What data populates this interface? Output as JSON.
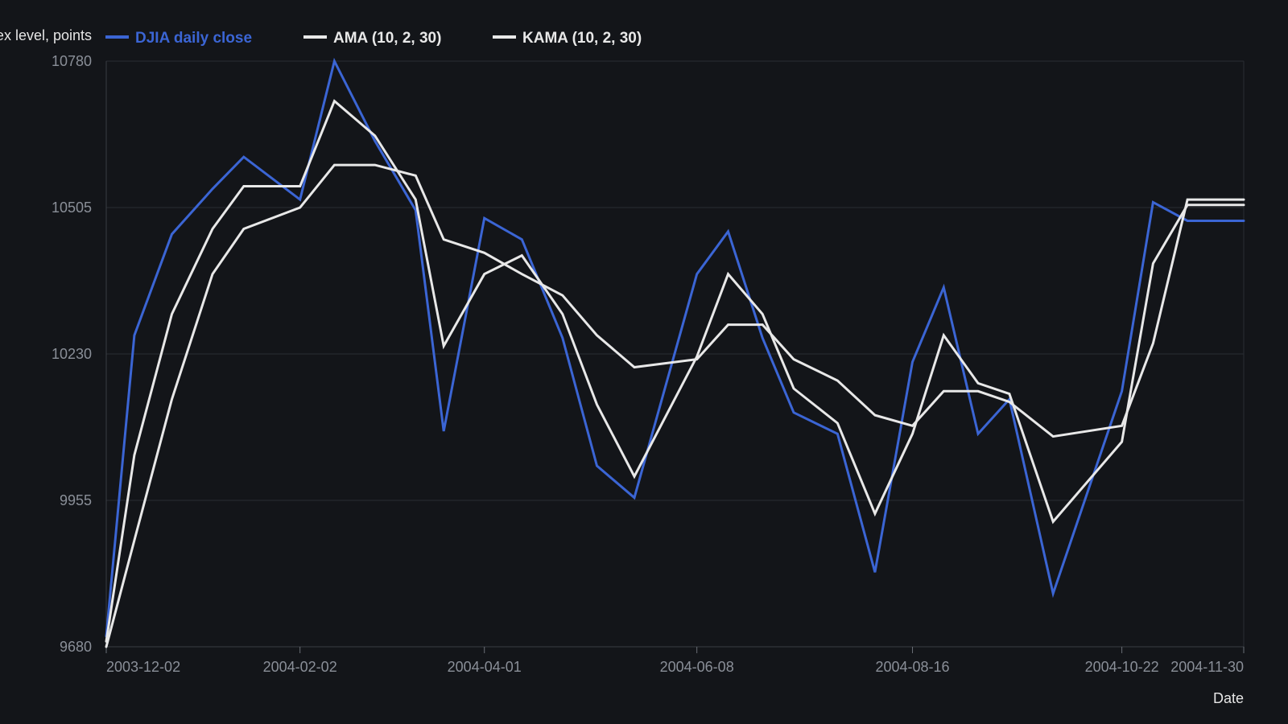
{
  "chart_data": {
    "type": "line",
    "xlabel": "Date",
    "ylabel": "Index level, points",
    "ylim": [
      9680,
      10780
    ],
    "yticks": [
      9680,
      9955,
      10230,
      10505,
      10780
    ],
    "x_tick_labels": [
      "2003-12-02",
      "2004-02-02",
      "2004-04-01",
      "2004-06-08",
      "2004-08-16",
      "2004-10-22",
      "2004-11-30"
    ],
    "x_tick_dates": [
      "2003-12-02",
      "2004-02-02",
      "2004-04-01",
      "2004-06-08",
      "2004-08-16",
      "2004-10-22",
      "2004-11-30"
    ],
    "x": [
      "2003-12-02",
      "2003-12-11",
      "2003-12-23",
      "2004-01-05",
      "2004-01-15",
      "2004-02-02",
      "2004-02-13",
      "2004-02-26",
      "2004-03-10",
      "2004-03-19",
      "2004-04-01",
      "2004-04-13",
      "2004-04-26",
      "2004-05-07",
      "2004-05-19",
      "2004-06-08",
      "2004-06-18",
      "2004-06-29",
      "2004-07-09",
      "2004-07-23",
      "2004-08-04",
      "2004-08-16",
      "2004-08-26",
      "2004-09-06",
      "2004-09-16",
      "2004-09-30",
      "2004-10-22",
      "2004-11-01",
      "2004-11-12",
      "2004-11-30"
    ],
    "grid": true,
    "legend_position": "top-left",
    "series": [
      {
        "name": "DJIA daily close",
        "color": "#3b65d4",
        "values": [
          9700,
          10265,
          10455,
          10540,
          10600,
          10520,
          10780,
          10630,
          10500,
          10085,
          10485,
          10445,
          10260,
          10020,
          9960,
          10380,
          10460,
          10260,
          10120,
          10080,
          9820,
          10215,
          10355,
          10080,
          10145,
          9780,
          10160,
          10515,
          10480,
          10480
        ]
      },
      {
        "name": "AMA (10, 2, 30)",
        "color": "#e8e8e8",
        "values": [
          9690,
          10040,
          10305,
          10465,
          10545,
          10545,
          10705,
          10640,
          10520,
          10245,
          10380,
          10415,
          10305,
          10135,
          10000,
          10225,
          10380,
          10305,
          10165,
          10100,
          9930,
          10080,
          10265,
          10175,
          10155,
          9915,
          10065,
          10400,
          10510,
          10510
        ]
      },
      {
        "name": "KAMA (10, 2, 30)",
        "color": "#e8e8e8",
        "values": [
          9680,
          9880,
          10145,
          10380,
          10465,
          10505,
          10585,
          10585,
          10565,
          10445,
          10420,
          10380,
          10340,
          10265,
          10205,
          10220,
          10285,
          10285,
          10220,
          10180,
          10115,
          10095,
          10160,
          10160,
          10140,
          10075,
          10095,
          10250,
          10520,
          10520
        ]
      }
    ]
  }
}
